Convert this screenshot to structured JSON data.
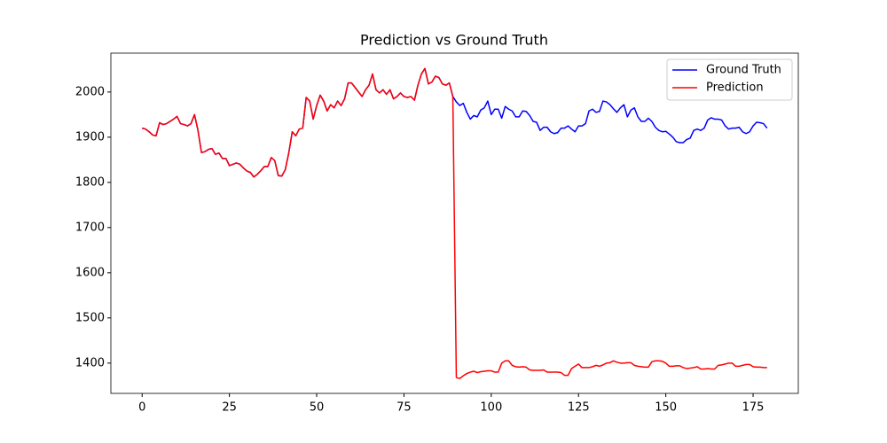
{
  "chart_data": {
    "type": "line",
    "title": "Prediction vs Ground Truth",
    "x": [
      0,
      1,
      2,
      3,
      4,
      5,
      6,
      7,
      8,
      9,
      10,
      11,
      12,
      13,
      14,
      15,
      16,
      17,
      18,
      19,
      20,
      21,
      22,
      23,
      24,
      25,
      26,
      27,
      28,
      29,
      30,
      31,
      32,
      33,
      34,
      35,
      36,
      37,
      38,
      39,
      40,
      41,
      42,
      43,
      44,
      45,
      46,
      47,
      48,
      49,
      50,
      51,
      52,
      53,
      54,
      55,
      56,
      57,
      58,
      59,
      60,
      61,
      62,
      63,
      64,
      65,
      66,
      67,
      68,
      69,
      70,
      71,
      72,
      73,
      74,
      75,
      76,
      77,
      78,
      79,
      80,
      81,
      82,
      83,
      84,
      85,
      86,
      87,
      88,
      89,
      90,
      91,
      92,
      93,
      94,
      95,
      96,
      97,
      98,
      99,
      100,
      101,
      102,
      103,
      104,
      105,
      106,
      107,
      108,
      109,
      110,
      111,
      112,
      113,
      114,
      115,
      116,
      117,
      118,
      119,
      120,
      121,
      122,
      123,
      124,
      125,
      126,
      127,
      128,
      129,
      130,
      131,
      132,
      133,
      134,
      135,
      136,
      137,
      138,
      139,
      140,
      141,
      142,
      143,
      144,
      145,
      146,
      147,
      148,
      149,
      150,
      151,
      152,
      153,
      154,
      155,
      156,
      157,
      158,
      159,
      160,
      161,
      162,
      163,
      164,
      165,
      166,
      167,
      168,
      169,
      170,
      171,
      172,
      173,
      174,
      175,
      176,
      177,
      178,
      179
    ],
    "series": [
      {
        "name": "Ground Truth",
        "color": "#0000ff",
        "values": [
          1920,
          1918,
          1912,
          1905,
          1903,
          1932,
          1928,
          1930,
          1935,
          1940,
          1946,
          1930,
          1928,
          1925,
          1930,
          1950,
          1915,
          1866,
          1868,
          1873,
          1875,
          1862,
          1865,
          1853,
          1853,
          1837,
          1840,
          1843,
          1840,
          1832,
          1825,
          1822,
          1812,
          1818,
          1826,
          1835,
          1835,
          1855,
          1848,
          1815,
          1814,
          1828,
          1865,
          1912,
          1903,
          1918,
          1920,
          1988,
          1980,
          1940,
          1970,
          1993,
          1980,
          1958,
          1972,
          1965,
          1980,
          1970,
          1985,
          2020,
          2020,
          2010,
          2000,
          1990,
          2005,
          2015,
          2040,
          2005,
          1998,
          2005,
          1995,
          2005,
          1985,
          1990,
          1998,
          1990,
          1988,
          1990,
          1982,
          2015,
          2040,
          2052,
          2018,
          2022,
          2035,
          2032,
          2018,
          2015,
          2020,
          1990,
          1978,
          1970,
          1975,
          1955,
          1940,
          1948,
          1945,
          1960,
          1965,
          1980,
          1950,
          1962,
          1962,
          1942,
          1968,
          1962,
          1958,
          1945,
          1945,
          1958,
          1957,
          1948,
          1935,
          1933,
          1915,
          1922,
          1922,
          1912,
          1908,
          1910,
          1920,
          1920,
          1925,
          1918,
          1912,
          1925,
          1925,
          1930,
          1958,
          1962,
          1955,
          1957,
          1980,
          1978,
          1972,
          1963,
          1955,
          1965,
          1972,
          1945,
          1960,
          1965,
          1945,
          1935,
          1935,
          1942,
          1935,
          1922,
          1915,
          1912,
          1913,
          1907,
          1900,
          1890,
          1888,
          1888,
          1895,
          1898,
          1915,
          1918,
          1915,
          1920,
          1938,
          1943,
          1940,
          1940,
          1938,
          1925,
          1918,
          1920,
          1920,
          1922,
          1912,
          1908,
          1912,
          1925,
          1933,
          1932,
          1930,
          1920
        ]
      },
      {
        "name": "Prediction",
        "color": "#ff0000",
        "values": [
          1920,
          1918,
          1912,
          1905,
          1903,
          1932,
          1928,
          1930,
          1935,
          1940,
          1946,
          1930,
          1928,
          1925,
          1930,
          1950,
          1915,
          1866,
          1868,
          1873,
          1875,
          1862,
          1865,
          1853,
          1853,
          1837,
          1840,
          1843,
          1840,
          1832,
          1825,
          1822,
          1812,
          1818,
          1826,
          1835,
          1835,
          1855,
          1848,
          1815,
          1814,
          1828,
          1865,
          1912,
          1903,
          1918,
          1920,
          1988,
          1980,
          1940,
          1970,
          1993,
          1980,
          1958,
          1972,
          1965,
          1980,
          1970,
          1985,
          2020,
          2020,
          2010,
          2000,
          1990,
          2005,
          2015,
          2040,
          2005,
          1998,
          2005,
          1995,
          2005,
          1985,
          1990,
          1998,
          1990,
          1988,
          1990,
          1982,
          2015,
          2040,
          2052,
          2018,
          2022,
          2035,
          2032,
          2018,
          2015,
          2020,
          1990,
          1368,
          1366,
          1372,
          1377,
          1380,
          1382,
          1379,
          1381,
          1382,
          1383,
          1383,
          1380,
          1380,
          1400,
          1405,
          1405,
          1395,
          1392,
          1391,
          1392,
          1391,
          1385,
          1384,
          1384,
          1384,
          1385,
          1380,
          1380,
          1380,
          1380,
          1379,
          1373,
          1373,
          1388,
          1393,
          1398,
          1390,
          1390,
          1390,
          1392,
          1395,
          1393,
          1396,
          1400,
          1401,
          1405,
          1402,
          1400,
          1400,
          1401,
          1401,
          1395,
          1393,
          1392,
          1391,
          1391,
          1403,
          1405,
          1405,
          1404,
          1400,
          1393,
          1393,
          1394,
          1394,
          1390,
          1388,
          1389,
          1390,
          1392,
          1387,
          1387,
          1388,
          1387,
          1387,
          1395,
          1396,
          1398,
          1400,
          1400,
          1393,
          1393,
          1395,
          1397,
          1397,
          1392,
          1391,
          1391,
          1390,
          1390
        ]
      }
    ],
    "xlim": [
      -8.95,
      187.95
    ],
    "xticks": [
      0,
      25,
      50,
      75,
      100,
      125,
      150,
      175
    ],
    "ylim": [
      1333,
      2086
    ],
    "yticks": [
      1400,
      1500,
      1600,
      1700,
      1800,
      1900,
      2000
    ],
    "grid": false,
    "legend": "upper right"
  }
}
